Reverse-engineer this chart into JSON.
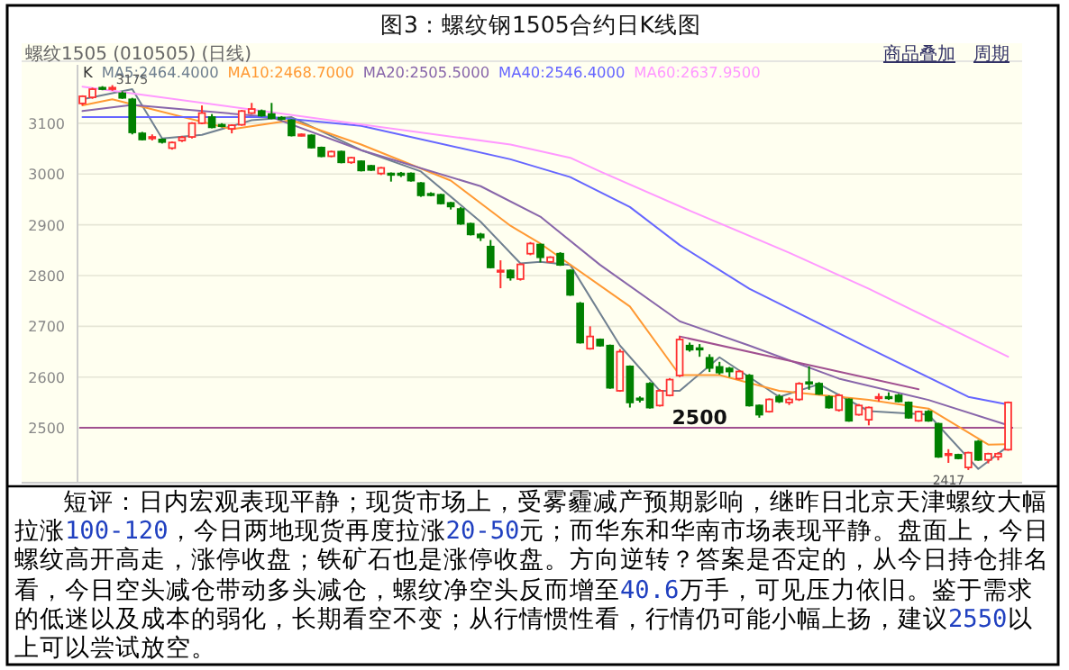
{
  "chart_data": {
    "type": "candlestick",
    "title": "图3：螺纹钢1505合约日K线图",
    "subtitle": "螺纹1505 (010505) (日线)",
    "categories": [
      null,
      null,
      null,
      null,
      null,
      null,
      null,
      null,
      null,
      null,
      null,
      null,
      null,
      null,
      null,
      null,
      null,
      null,
      null,
      null,
      null,
      null,
      null,
      null,
      null,
      null,
      null,
      null,
      null,
      null,
      null,
      null,
      null,
      null,
      null,
      null,
      null,
      null,
      null,
      null,
      null,
      null,
      null,
      null,
      null,
      null,
      null,
      null,
      null,
      null,
      null,
      null,
      null,
      null,
      null,
      null,
      null,
      null,
      null,
      null,
      null,
      null,
      null,
      null,
      null,
      null,
      null,
      null,
      null,
      null,
      null,
      null,
      null,
      null,
      null,
      null,
      null,
      null,
      null,
      null,
      null,
      null,
      null,
      null,
      null,
      null,
      null,
      null,
      null,
      null,
      null,
      null,
      null,
      null
    ],
    "ylim": [
      2392,
      3215
    ],
    "yticks": [
      2500,
      2600,
      2700,
      2800,
      2900,
      3000,
      3100
    ],
    "grid": "y",
    "legend": "top left",
    "tick_labels": "y",
    "series": [
      {
        "name": "K",
        "ohlc": [
          [
            3139,
            3155,
            3135,
            3153
          ],
          [
            3151,
            3170,
            3148,
            3167
          ],
          [
            3170,
            3173,
            3165,
            3168
          ],
          [
            3168,
            3175,
            3164,
            3170
          ],
          [
            3159,
            3163,
            3148,
            3150
          ],
          [
            3147,
            3150,
            3078,
            3082
          ],
          [
            3080,
            3083,
            3066,
            3068
          ],
          [
            3070,
            3078,
            3066,
            3073
          ],
          [
            3068,
            3070,
            3060,
            3063
          ],
          [
            3051,
            3064,
            3048,
            3062
          ],
          [
            3066,
            3075,
            3063,
            3072
          ],
          [
            3073,
            3102,
            3070,
            3100
          ],
          [
            3100,
            3135,
            3098,
            3120
          ],
          [
            3112,
            3118,
            3090,
            3092
          ],
          [
            3097,
            3100,
            3092,
            3096
          ],
          [
            3089,
            3098,
            3080,
            3096
          ],
          [
            3097,
            3126,
            3095,
            3124
          ],
          [
            3120,
            3140,
            3118,
            3128
          ],
          [
            3124,
            3127,
            3113,
            3115
          ],
          [
            3118,
            3140,
            3108,
            3110
          ],
          [
            3111,
            3114,
            3106,
            3110
          ],
          [
            3106,
            3108,
            3074,
            3076
          ],
          [
            3076,
            3080,
            3074,
            3078
          ],
          [
            3076,
            3078,
            3050,
            3052
          ],
          [
            3052,
            3054,
            3033,
            3035
          ],
          [
            3035,
            3046,
            3033,
            3044
          ],
          [
            3044,
            3046,
            3021,
            3023
          ],
          [
            3023,
            3034,
            3020,
            3032
          ],
          [
            3025,
            3027,
            3005,
            3007
          ],
          [
            3016,
            3018,
            3006,
            3008
          ],
          [
            3001,
            3014,
            2998,
            3012
          ],
          [
            3001,
            3003,
            2985,
            3000
          ],
          [
            3001,
            3004,
            2994,
            2998
          ],
          [
            3001,
            3003,
            2985,
            2987
          ],
          [
            2982,
            2984,
            2955,
            2958
          ],
          [
            2961,
            2964,
            2956,
            2960
          ],
          [
            2959,
            2961,
            2940,
            2942
          ],
          [
            2943,
            2945,
            2930,
            2936
          ],
          [
            2931,
            2935,
            2900,
            2902
          ],
          [
            2902,
            2904,
            2879,
            2881
          ],
          [
            2881,
            2884,
            2868,
            2875
          ],
          [
            2857,
            2870,
            2814,
            2816
          ],
          [
            2808,
            2830,
            2775,
            2810
          ],
          [
            2810,
            2812,
            2790,
            2796
          ],
          [
            2793,
            2824,
            2790,
            2822
          ],
          [
            2843,
            2866,
            2840,
            2863
          ],
          [
            2861,
            2863,
            2826,
            2836
          ],
          [
            2827,
            2838,
            2825,
            2836
          ],
          [
            2843,
            2846,
            2819,
            2821
          ],
          [
            2810,
            2812,
            2760,
            2762
          ],
          [
            2745,
            2748,
            2666,
            2668
          ],
          [
            2656,
            2700,
            2654,
            2680
          ],
          [
            2674,
            2676,
            2660,
            2662
          ],
          [
            2662,
            2664,
            2577,
            2579
          ],
          [
            2573,
            2655,
            2571,
            2650
          ],
          [
            2621,
            2623,
            2540,
            2550
          ],
          [
            2558,
            2562,
            2550,
            2556
          ],
          [
            2587,
            2590,
            2538,
            2540
          ],
          [
            2544,
            2576,
            2542,
            2573
          ],
          [
            2564,
            2598,
            2562,
            2595
          ],
          [
            2603,
            2680,
            2600,
            2674
          ],
          [
            2662,
            2668,
            2650,
            2654
          ],
          [
            2657,
            2665,
            2640,
            2655
          ],
          [
            2638,
            2645,
            2610,
            2618
          ],
          [
            2620,
            2630,
            2605,
            2609
          ],
          [
            2617,
            2620,
            2600,
            2611
          ],
          [
            2597,
            2614,
            2595,
            2611
          ],
          [
            2603,
            2606,
            2542,
            2544
          ],
          [
            2544,
            2546,
            2520,
            2526
          ],
          [
            2532,
            2558,
            2530,
            2556
          ],
          [
            2561,
            2566,
            2549,
            2552
          ],
          [
            2550,
            2560,
            2545,
            2556
          ],
          [
            2556,
            2590,
            2553,
            2587
          ],
          [
            2590,
            2621,
            2575,
            2587
          ],
          [
            2587,
            2590,
            2565,
            2567
          ],
          [
            2561,
            2564,
            2538,
            2540
          ],
          [
            2535,
            2567,
            2532,
            2564
          ],
          [
            2556,
            2558,
            2512,
            2514
          ],
          [
            2526,
            2547,
            2524,
            2544
          ],
          [
            2516,
            2542,
            2505,
            2540
          ],
          [
            2560,
            2568,
            2552,
            2561
          ],
          [
            2561,
            2570,
            2555,
            2560
          ],
          [
            2564,
            2567,
            2550,
            2552
          ],
          [
            2550,
            2552,
            2518,
            2520
          ],
          [
            2514,
            2534,
            2512,
            2532
          ],
          [
            2532,
            2535,
            2512,
            2514
          ],
          [
            2508,
            2510,
            2441,
            2443
          ],
          [
            2447,
            2458,
            2431,
            2449
          ],
          [
            2447,
            2449,
            2438,
            2440
          ],
          [
            2422,
            2453,
            2417,
            2451
          ],
          [
            2473,
            2476,
            2435,
            2437
          ],
          [
            2437,
            2451,
            2430,
            2449
          ],
          [
            2443,
            2452,
            2436,
            2449
          ],
          [
            2457,
            2552,
            2455,
            2550
          ]
        ],
        "colors": [
          "#ff3030",
          "#ff3030",
          "#008000",
          "#ff3030",
          "#008000",
          "#008000",
          "#008000",
          "#ff3030",
          "#008000",
          "#ff3030",
          "#ff3030",
          "#ff3030",
          "#ff3030",
          "#008000",
          "#008000",
          "#ff3030",
          "#ff3030",
          "#ff3030",
          "#008000",
          "#008000",
          "#008000",
          "#008000",
          "#ff3030",
          "#008000",
          "#008000",
          "#ff3030",
          "#008000",
          "#ff3030",
          "#008000",
          "#008000",
          "#ff3030",
          "#008000",
          "#008000",
          "#008000",
          "#008000",
          "#008000",
          "#008000",
          "#008000",
          "#008000",
          "#008000",
          "#008000",
          "#008000",
          "#ff3030",
          "#008000",
          "#ff3030",
          "#ff3030",
          "#008000",
          "#ff3030",
          "#008000",
          "#008000",
          "#008000",
          "#ff3030",
          "#008000",
          "#008000",
          "#ff3030",
          "#008000",
          "#008000",
          "#008000",
          "#ff3030",
          "#ff3030",
          "#ff3030",
          "#008000",
          "#008000",
          "#008000",
          "#008000",
          "#008000",
          "#ff3030",
          "#008000",
          "#008000",
          "#ff3030",
          "#008000",
          "#ff3030",
          "#ff3030",
          "#008000",
          "#008000",
          "#008000",
          "#ff3030",
          "#008000",
          "#ff3030",
          "#ff3030",
          "#ff3030",
          "#008000",
          "#008000",
          "#008000",
          "#ff3030",
          "#008000",
          "#008000",
          "#ff3030",
          "#008000",
          "#ff3030",
          "#008000",
          "#ff3030",
          "#ff3030",
          "#ff3030"
        ]
      },
      {
        "name": "MA5:2464.4000",
        "type": "line",
        "color": "#708090",
        "values": [
          3147,
          null,
          null,
          null,
          null,
          3167,
          null,
          null,
          3070,
          null,
          null,
          null,
          3077,
          null,
          null,
          null,
          null,
          3106,
          null,
          null,
          null,
          3112,
          null,
          null,
          null,
          null,
          null,
          null,
          3047,
          null,
          null,
          null,
          null,
          null,
          3005,
          null,
          null,
          null,
          null,
          null,
          2906,
          null,
          null,
          null,
          2824,
          null,
          2827,
          null,
          null,
          2821,
          null,
          null,
          null,
          null,
          2662,
          null,
          null,
          null,
          2573,
          null,
          2573,
          null,
          null,
          null,
          2639,
          null,
          null,
          null,
          null,
          null,
          2561,
          null,
          null,
          null,
          2586,
          null,
          null,
          null,
          null,
          2533,
          null,
          null,
          null,
          null,
          null,
          2526,
          null,
          null,
          null,
          null,
          2419,
          null,
          null,
          2464
        ]
      },
      {
        "name": "MA10:2468.7000",
        "type": "line",
        "color": "#ff9933",
        "values": [
          3135,
          null,
          null,
          3147,
          null,
          null,
          null,
          null,
          null,
          null,
          null,
          null,
          null,
          null,
          null,
          3088,
          null,
          null,
          null,
          null,
          null,
          3106,
          null,
          null,
          null,
          null,
          null,
          null,
          3058,
          null,
          null,
          null,
          null,
          null,
          null,
          null,
          null,
          2987,
          null,
          null,
          null,
          null,
          null,
          2898,
          null,
          null,
          2863,
          null,
          null,
          null,
          null,
          null,
          null,
          null,
          null,
          2739,
          null,
          null,
          null,
          null,
          2604,
          null,
          null,
          null,
          2604,
          null,
          null,
          null,
          null,
          null,
          2573,
          null,
          null,
          null,
          null,
          null,
          null,
          null,
          null,
          2555,
          null,
          null,
          null,
          null,
          null,
          2538,
          null,
          null,
          null,
          null,
          null,
          2467,
          null,
          2468
        ]
      },
      {
        "name": "MA20:2505.5000",
        "type": "line",
        "color": "#8866aa",
        "values": [
          3124,
          null,
          null,
          null,
          null,
          3136,
          null,
          null,
          null,
          null,
          null,
          null,
          null,
          null,
          null,
          null,
          null,
          null,
          null,
          3112,
          null,
          null,
          null,
          null,
          null,
          null,
          null,
          null,
          3047,
          null,
          null,
          null,
          null,
          null,
          null,
          null,
          null,
          null,
          null,
          null,
          2976,
          null,
          null,
          null,
          null,
          null,
          2916,
          null,
          null,
          null,
          null,
          null,
          2821,
          null,
          null,
          null,
          null,
          null,
          null,
          null,
          2710,
          null,
          null,
          null,
          null,
          null,
          null,
          2662,
          null,
          null,
          null,
          null,
          null,
          null,
          null,
          null,
          2597,
          null,
          null,
          null,
          null,
          null,
          null,
          null,
          null,
          2555,
          null,
          null,
          null,
          null,
          null,
          null,
          null,
          2505
        ]
      },
      {
        "name": "MA40:2546.4000",
        "type": "line",
        "color": "#6666ff",
        "values": [
          3112,
          null,
          null,
          null,
          null,
          null,
          null,
          null,
          null,
          null,
          null,
          null,
          null,
          null,
          null,
          null,
          null,
          null,
          null,
          3112,
          null,
          null,
          null,
          null,
          null,
          null,
          null,
          null,
          3095,
          null,
          null,
          null,
          null,
          null,
          null,
          null,
          null,
          null,
          null,
          null,
          null,
          null,
          null,
          3029,
          null,
          null,
          null,
          null,
          null,
          2994,
          null,
          null,
          null,
          null,
          null,
          2935,
          null,
          null,
          null,
          null,
          2860,
          null,
          null,
          null,
          null,
          null,
          null,
          2774,
          null,
          null,
          null,
          null,
          null,
          null,
          null,
          null,
          null,
          null,
          null,
          2657,
          null,
          null,
          null,
          null,
          null,
          null,
          null,
          null,
          null,
          2561,
          null,
          null,
          null,
          2546
        ]
      },
      {
        "name": "MA60:2637.9500",
        "type": "line",
        "color": "#ff99ff",
        "values": [
          3172,
          null,
          null,
          null,
          null,
          null,
          null,
          null,
          null,
          null,
          null,
          null,
          null,
          null,
          null,
          null,
          null,
          null,
          null,
          null,
          null,
          null,
          null,
          null,
          null,
          null,
          null,
          null,
          null,
          null,
          null,
          null,
          null,
          null,
          null,
          null,
          null,
          null,
          null,
          null,
          null,
          null,
          null,
          3058,
          null,
          null,
          null,
          null,
          null,
          3032,
          null,
          null,
          3005,
          null,
          null,
          null,
          null,
          null,
          null,
          null,
          null,
          2928,
          null,
          null,
          null,
          null,
          null,
          null,
          null,
          null,
          null,
          2845,
          null,
          null,
          null,
          null,
          null,
          null,
          null,
          2774,
          null,
          null,
          null,
          null,
          null,
          null,
          null,
          null,
          null,
          null,
          null,
          null,
          null,
          2640
        ]
      },
      {
        "type": "line",
        "color": "#a05090",
        "values": [
          null,
          null,
          null,
          null,
          null,
          null,
          null,
          null,
          null,
          null,
          null,
          null,
          null,
          null,
          null,
          null,
          null,
          null,
          null,
          null,
          null,
          null,
          null,
          null,
          null,
          null,
          null,
          null,
          null,
          null,
          null,
          null,
          null,
          null,
          null,
          null,
          null,
          null,
          null,
          null,
          null,
          null,
          null,
          null,
          null,
          null,
          null,
          null,
          null,
          null,
          null,
          null,
          null,
          null,
          null,
          null,
          null,
          null,
          null,
          null,
          2680,
          null,
          null,
          null,
          null,
          null,
          null,
          null,
          null,
          null,
          null,
          null,
          null,
          null,
          null,
          null,
          null,
          null,
          null,
          null,
          null,
          null,
          null,
          null,
          2576,
          null,
          null,
          null,
          null,
          null,
          null,
          null,
          null,
          null
        ]
      }
    ],
    "ref_lines": [
      {
        "axis": "y",
        "value": 2500,
        "label": "2500",
        "color": "#a05090"
      }
    ],
    "annotations": [
      "商品叠加",
      "周期",
      {
        "text": "3175",
        "y": 3175
      },
      {
        "text": "2417",
        "y": 2417
      },
      "短评：日内宏观表现平静；现货市场上，受雾霾减产预期影响，继昨日北京天津螺纹大幅拉涨100-120，今日两地现货再度拉涨20-50元；而华东和华南市场表现平静。盘面上，今日螺纹高开高走，涨停收盘；铁矿石也是涨停收盘。方向逆转？答案是否定的，从今日持仓排名看，今日空头减仓带动多头减仓，螺纹净空头反而增至40.6万手，可见压力依旧。鉴于需求的低迷以及成本的弱化，长期看空不变；从行情惯性看，行情仍可能小幅上扬，建议2550以上可以尝试放空。"
    ]
  }
}
